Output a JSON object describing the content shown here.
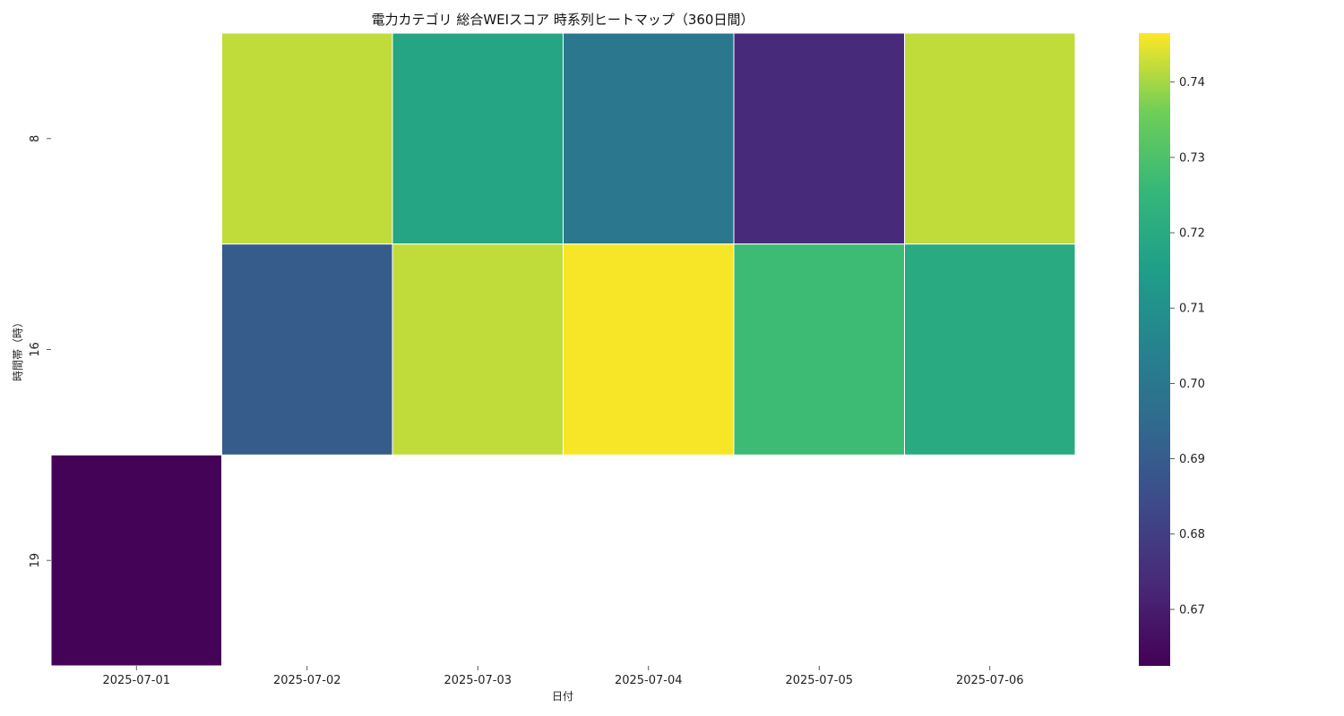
{
  "chart_data": {
    "type": "heatmap",
    "title": "電力カテゴリ 総合WEIスコア 時系列ヒートマップ（360日間）",
    "xlabel": "日付",
    "ylabel": "時間帯（時）",
    "x": [
      "2025-07-01",
      "2025-07-02",
      "2025-07-03",
      "2025-07-04",
      "2025-07-05",
      "2025-07-06"
    ],
    "y": [
      "8",
      "16",
      "19"
    ],
    "values": [
      [
        null,
        0.742,
        0.718,
        0.7,
        0.674,
        0.742
      ],
      [
        null,
        0.69,
        0.742,
        0.746,
        0.727,
        0.72
      ],
      [
        0.663,
        null,
        null,
        null,
        null,
        null
      ]
    ],
    "colormap": "viridis",
    "colorbar": {
      "range": [
        0.6625,
        0.7465
      ],
      "ticks": [
        0.67,
        0.68,
        0.69,
        0.7,
        0.71,
        0.72,
        0.73,
        0.74
      ],
      "tick_labels": [
        "0.67",
        "0.68",
        "0.69",
        "0.70",
        "0.71",
        "0.72",
        "0.73",
        "0.74"
      ]
    },
    "grid": false,
    "missing_cells": "blank"
  }
}
